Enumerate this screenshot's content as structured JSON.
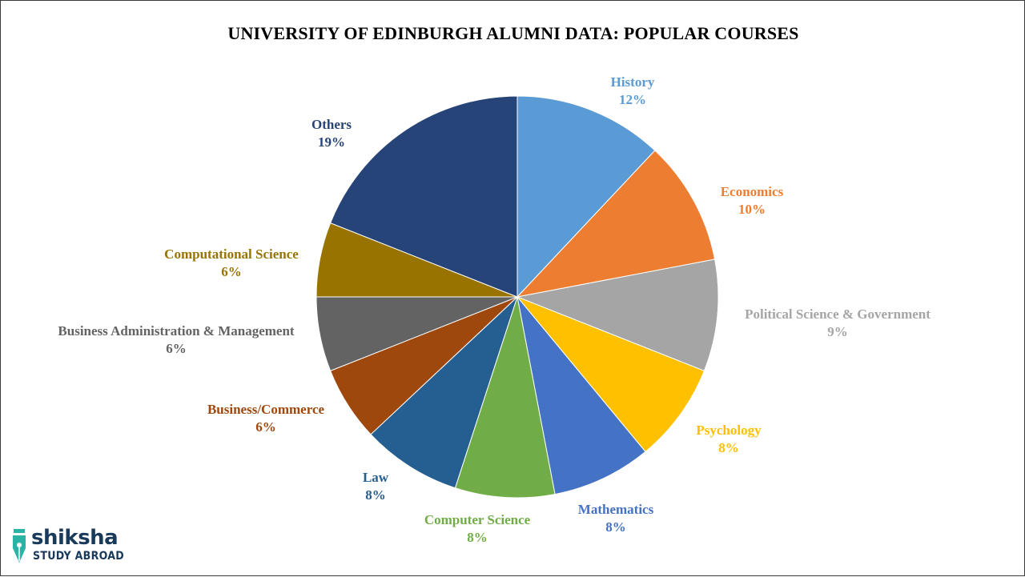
{
  "chart_data": {
    "type": "pie",
    "title": "UNIVERSITY  OF EDINBURGH ALUMNI DATA: POPULAR COURSES",
    "slices": [
      {
        "label": "History",
        "value": 12,
        "value_label": "12%",
        "color": "#5b9bd5"
      },
      {
        "label": "Economics",
        "value": 10,
        "value_label": "10%",
        "color": "#ed7d31"
      },
      {
        "label": "Political Science & Government",
        "value": 9,
        "value_label": "9%",
        "color": "#a5a5a5"
      },
      {
        "label": "Psychology",
        "value": 8,
        "value_label": "8%",
        "color": "#ffc000"
      },
      {
        "label": "Mathematics",
        "value": 8,
        "value_label": "8%",
        "color": "#4472c4"
      },
      {
        "label": "Computer Science",
        "value": 8,
        "value_label": "8%",
        "color": "#70ad47"
      },
      {
        "label": "Law",
        "value": 8,
        "value_label": "8%",
        "color": "#255e91"
      },
      {
        "label": "Business/Commerce",
        "value": 6,
        "value_label": "6%",
        "color": "#9e480e"
      },
      {
        "label": "Business Administration & Management",
        "value": 6,
        "value_label": "6%",
        "color": "#636363"
      },
      {
        "label": "Computational Science",
        "value": 6,
        "value_label": "6%",
        "color": "#997300"
      },
      {
        "label": "Others",
        "value": 19,
        "value_label": "19%",
        "color": "#264478"
      }
    ],
    "start_angle_deg": 0,
    "direction": "clockwise"
  },
  "logo": {
    "word": "shiksha",
    "sub": "STUDY ABROAD",
    "icon": "pen-nib-icon",
    "color": "#1a3a5c",
    "accent": "#2bb3a6"
  }
}
